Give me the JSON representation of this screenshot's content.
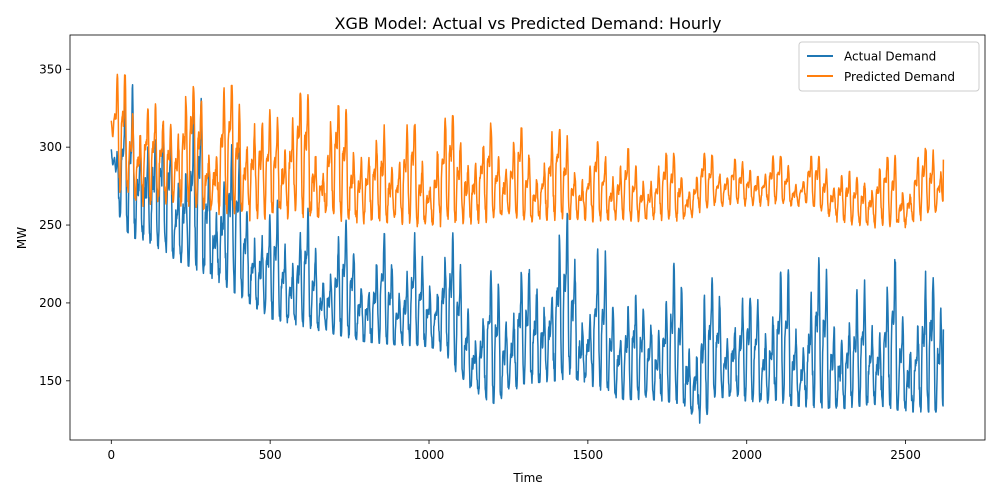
{
  "chart_data": {
    "type": "line",
    "title": "XGB Model: Actual vs Predicted Demand:  Hourly",
    "xlabel": "Time",
    "ylabel": "MW",
    "xlim": [
      -130,
      2750
    ],
    "ylim": [
      112,
      372
    ],
    "x_ticks": [
      0,
      500,
      1000,
      1500,
      2000,
      2500
    ],
    "y_ticks": [
      150,
      200,
      250,
      300,
      350
    ],
    "grid": false,
    "legend_position": "top-right",
    "n_points": 2620,
    "series": [
      {
        "name": "Actual Demand",
        "color": "#1f77b4",
        "anchors": [
          {
            "x": 0,
            "min": 297,
            "max": 312
          },
          {
            "x": 20,
            "min": 258,
            "max": 310
          },
          {
            "x": 60,
            "min": 242,
            "max": 350
          },
          {
            "x": 110,
            "min": 240,
            "max": 360
          },
          {
            "x": 200,
            "min": 228,
            "max": 325
          },
          {
            "x": 300,
            "min": 218,
            "max": 340
          },
          {
            "x": 400,
            "min": 205,
            "max": 300
          },
          {
            "x": 500,
            "min": 190,
            "max": 275
          },
          {
            "x": 600,
            "min": 185,
            "max": 262
          },
          {
            "x": 700,
            "min": 180,
            "max": 255
          },
          {
            "x": 800,
            "min": 175,
            "max": 250
          },
          {
            "x": 900,
            "min": 173,
            "max": 245
          },
          {
            "x": 1000,
            "min": 172,
            "max": 248
          },
          {
            "x": 1050,
            "min": 168,
            "max": 260
          },
          {
            "x": 1100,
            "min": 150,
            "max": 230
          },
          {
            "x": 1200,
            "min": 135,
            "max": 225
          },
          {
            "x": 1300,
            "min": 148,
            "max": 240
          },
          {
            "x": 1400,
            "min": 150,
            "max": 255
          },
          {
            "x": 1450,
            "min": 152,
            "max": 262
          },
          {
            "x": 1500,
            "min": 148,
            "max": 240
          },
          {
            "x": 1600,
            "min": 138,
            "max": 228
          },
          {
            "x": 1700,
            "min": 138,
            "max": 225
          },
          {
            "x": 1800,
            "min": 135,
            "max": 228
          },
          {
            "x": 1860,
            "min": 121,
            "max": 220
          },
          {
            "x": 1900,
            "min": 140,
            "max": 220
          },
          {
            "x": 2000,
            "min": 137,
            "max": 230
          },
          {
            "x": 2100,
            "min": 135,
            "max": 225
          },
          {
            "x": 2200,
            "min": 133,
            "max": 235
          },
          {
            "x": 2300,
            "min": 132,
            "max": 222
          },
          {
            "x": 2400,
            "min": 135,
            "max": 225
          },
          {
            "x": 2500,
            "min": 130,
            "max": 232
          },
          {
            "x": 2619,
            "min": 130,
            "max": 220
          }
        ],
        "end_value": 183
      },
      {
        "name": "Predicted Demand",
        "color": "#ff7f0e",
        "anchors": [
          {
            "x": 0,
            "min": 315,
            "max": 322
          },
          {
            "x": 20,
            "min": 270,
            "max": 348
          },
          {
            "x": 100,
            "min": 262,
            "max": 342
          },
          {
            "x": 200,
            "min": 262,
            "max": 340
          },
          {
            "x": 300,
            "min": 258,
            "max": 338
          },
          {
            "x": 400,
            "min": 252,
            "max": 340
          },
          {
            "x": 500,
            "min": 254,
            "max": 338
          },
          {
            "x": 600,
            "min": 253,
            "max": 335
          },
          {
            "x": 700,
            "min": 252,
            "max": 328
          },
          {
            "x": 800,
            "min": 250,
            "max": 318
          },
          {
            "x": 900,
            "min": 249,
            "max": 314
          },
          {
            "x": 1000,
            "min": 248,
            "max": 315
          },
          {
            "x": 1100,
            "min": 250,
            "max": 322
          },
          {
            "x": 1200,
            "min": 252,
            "max": 315
          },
          {
            "x": 1300,
            "min": 252,
            "max": 312
          },
          {
            "x": 1400,
            "min": 252,
            "max": 312
          },
          {
            "x": 1500,
            "min": 252,
            "max": 305
          },
          {
            "x": 1600,
            "min": 252,
            "max": 300
          },
          {
            "x": 1700,
            "min": 252,
            "max": 296
          },
          {
            "x": 1800,
            "min": 252,
            "max": 296
          },
          {
            "x": 1900,
            "min": 262,
            "max": 296
          },
          {
            "x": 2000,
            "min": 262,
            "max": 296
          },
          {
            "x": 2100,
            "min": 262,
            "max": 294
          },
          {
            "x": 2200,
            "min": 262,
            "max": 294
          },
          {
            "x": 2300,
            "min": 250,
            "max": 294
          },
          {
            "x": 2400,
            "min": 248,
            "max": 292
          },
          {
            "x": 2500,
            "min": 248,
            "max": 296
          },
          {
            "x": 2619,
            "min": 260,
            "max": 302
          }
        ],
        "end_value": 292
      }
    ]
  }
}
